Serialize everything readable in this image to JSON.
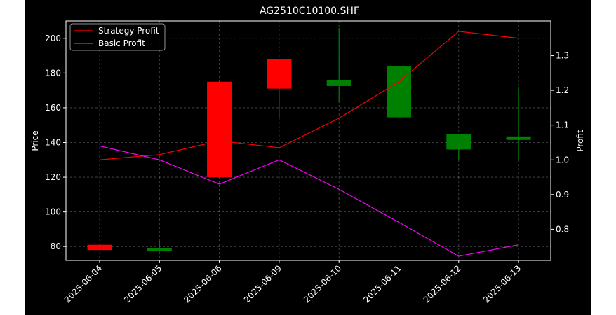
{
  "chart_data": {
    "type": "candlestick",
    "title": "AG2510C10100.SHF",
    "ylabel": "Price",
    "y2label": "Profit",
    "categories": [
      "2025-06-04",
      "2025-06-05",
      "2025-06-06",
      "2025-06-09",
      "2025-06-10",
      "2025-06-11",
      "2025-06-12",
      "2025-06-13"
    ],
    "candles": [
      {
        "open": 78,
        "close": 81,
        "high": 81,
        "low": 78
      },
      {
        "open": 79,
        "close": 77.5,
        "high": 83,
        "low": 77
      },
      {
        "open": 120,
        "close": 175,
        "high": 175,
        "low": 120
      },
      {
        "open": 171,
        "close": 188,
        "high": 188,
        "low": 154
      },
      {
        "open": 176,
        "close": 172.5,
        "high": 206,
        "low": 163
      },
      {
        "open": 184,
        "close": 154.5,
        "high": 184,
        "low": 154.5
      },
      {
        "open": 145,
        "close": 136,
        "high": 145,
        "low": 130
      },
      {
        "open": 143.5,
        "close": 141.5,
        "high": 172,
        "low": 129.5
      }
    ],
    "series": [
      {
        "name": "Strategy Profit",
        "axis": "right",
        "color": "#ff0000",
        "values": [
          1.0,
          1.015,
          1.055,
          1.035,
          1.12,
          1.225,
          1.37,
          1.35
        ]
      },
      {
        "name": "Basic Profit",
        "axis": "right",
        "color": "#ff00ff",
        "values": [
          1.04,
          1.0,
          0.93,
          1.0,
          0.915,
          0.82,
          0.722,
          0.755
        ]
      }
    ],
    "ylim": [
      72,
      210
    ],
    "y2lim": [
      0.71,
      1.4
    ],
    "yticks": [
      80,
      100,
      120,
      140,
      160,
      180,
      200
    ],
    "y2ticks": [
      "0.8",
      "0.9",
      "1.0",
      "1.1",
      "1.2",
      "1.3"
    ],
    "up_color": "#ff0000",
    "down_color": "#008000",
    "background": "#000000",
    "grid": true,
    "legend_position": "top-left"
  }
}
